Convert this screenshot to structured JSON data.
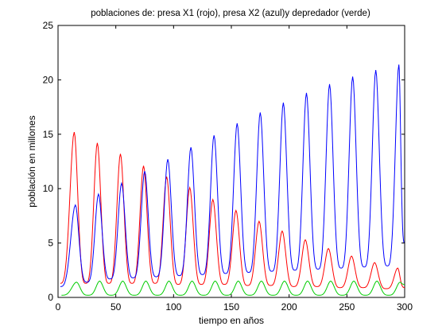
{
  "chart_data": {
    "type": "line",
    "title": "poblaciones de: presa X1 (rojo), presa X2 (azul)y depredador (verde)",
    "xlabel": "tiempo en años",
    "ylabel": "población en millones",
    "xlim": [
      0,
      300
    ],
    "ylim": [
      0,
      25
    ],
    "xticks": [
      0,
      50,
      100,
      150,
      200,
      250,
      300
    ],
    "yticks": [
      0,
      5,
      10,
      15,
      20,
      25
    ],
    "grid": false,
    "series": [
      {
        "color": "#ff0000",
        "peaks": [
          [
            14,
            15.2
          ],
          [
            34,
            14.2
          ],
          [
            54,
            13.2
          ],
          [
            74,
            12.1
          ],
          [
            94,
            11.1
          ],
          [
            114,
            10.1
          ],
          [
            134,
            9.0
          ],
          [
            154,
            8.0
          ],
          [
            174,
            7.0
          ],
          [
            194,
            6.1
          ],
          [
            214,
            5.3
          ],
          [
            234,
            4.5
          ],
          [
            254,
            3.8
          ],
          [
            274,
            3.2
          ],
          [
            294,
            2.7
          ]
        ],
        "troughs": [
          [
            2,
            1.3
          ],
          [
            24,
            1.3
          ],
          [
            44,
            1.3
          ],
          [
            64,
            1.3
          ],
          [
            84,
            1.3
          ],
          [
            104,
            1.2
          ],
          [
            124,
            1.2
          ],
          [
            144,
            1.2
          ],
          [
            164,
            1.1
          ],
          [
            184,
            1.1
          ],
          [
            204,
            1.0
          ],
          [
            224,
            1.0
          ],
          [
            244,
            0.9
          ],
          [
            264,
            0.9
          ],
          [
            284,
            0.8
          ],
          [
            300,
            0.9
          ]
        ]
      },
      {
        "color": "#0000ff",
        "peaks": [
          [
            15,
            8.5
          ],
          [
            35,
            9.5
          ],
          [
            55,
            10.5
          ],
          [
            75,
            11.6
          ],
          [
            95,
            12.7
          ],
          [
            115,
            13.8
          ],
          [
            135,
            14.9
          ],
          [
            155,
            16.0
          ],
          [
            175,
            17.0
          ],
          [
            195,
            17.9
          ],
          [
            215,
            18.8
          ],
          [
            235,
            19.6
          ],
          [
            255,
            20.3
          ],
          [
            275,
            20.9
          ],
          [
            295,
            21.4
          ]
        ],
        "troughs": [
          [
            2,
            1.0
          ],
          [
            25,
            1.4
          ],
          [
            45,
            1.7
          ],
          [
            65,
            1.8
          ],
          [
            85,
            1.9
          ],
          [
            105,
            2.0
          ],
          [
            125,
            2.1
          ],
          [
            145,
            2.2
          ],
          [
            165,
            2.3
          ],
          [
            185,
            2.4
          ],
          [
            205,
            2.5
          ],
          [
            225,
            2.6
          ],
          [
            245,
            2.7
          ],
          [
            265,
            2.8
          ],
          [
            285,
            2.9
          ],
          [
            300,
            5.0
          ]
        ]
      },
      {
        "color": "#00cc00",
        "peaks": [
          [
            16,
            1.4
          ],
          [
            36,
            1.5
          ],
          [
            56,
            1.5
          ],
          [
            76,
            1.5
          ],
          [
            96,
            1.5
          ],
          [
            116,
            1.5
          ],
          [
            136,
            1.5
          ],
          [
            156,
            1.5
          ],
          [
            176,
            1.5
          ],
          [
            196,
            1.5
          ],
          [
            216,
            1.5
          ],
          [
            236,
            1.5
          ],
          [
            256,
            1.5
          ],
          [
            276,
            1.5
          ],
          [
            296,
            1.4
          ]
        ],
        "troughs": [
          [
            3,
            0.2
          ],
          [
            26,
            0.2
          ],
          [
            46,
            0.2
          ],
          [
            66,
            0.2
          ],
          [
            86,
            0.2
          ],
          [
            106,
            0.2
          ],
          [
            126,
            0.2
          ],
          [
            146,
            0.2
          ],
          [
            166,
            0.2
          ],
          [
            186,
            0.2
          ],
          [
            206,
            0.2
          ],
          [
            226,
            0.2
          ],
          [
            246,
            0.2
          ],
          [
            266,
            0.2
          ],
          [
            286,
            0.2
          ],
          [
            300,
            1.2
          ]
        ]
      }
    ]
  }
}
